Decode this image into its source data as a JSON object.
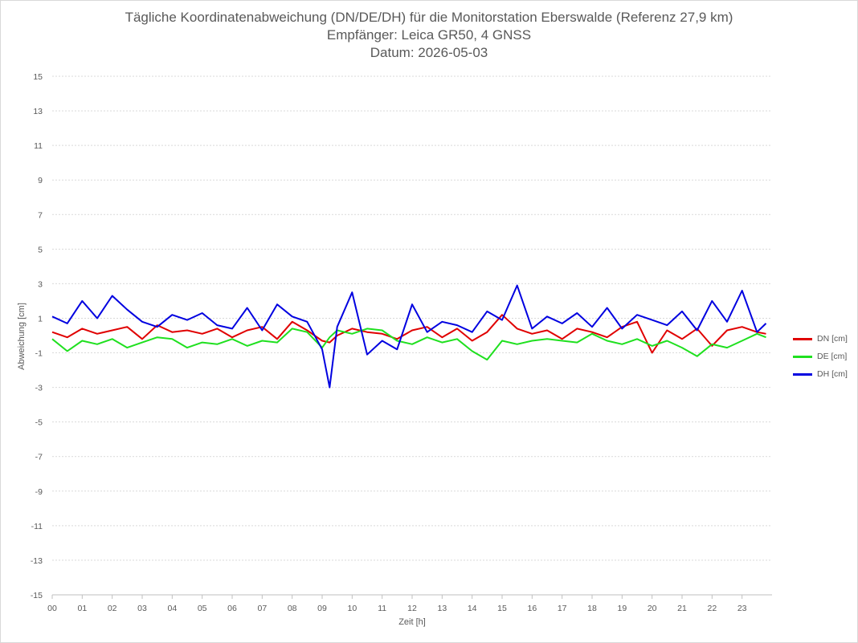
{
  "chart_data": {
    "type": "line",
    "title": "Tägliche Koordinatenabweichung (DN/DE/DH) für die Monitorstation Eberswalde (Referenz 27,9 km)",
    "subtitle": "Empfänger: Leica GR50, 4 GNSS",
    "subtitle2": "Datum: 2026-05-03",
    "xlabel": "Zeit [h]",
    "ylabel": "Abweichung [cm]",
    "xlim": [
      0,
      24
    ],
    "ylim": [
      -15,
      15
    ],
    "x_ticks": [
      "00",
      "01",
      "02",
      "03",
      "04",
      "05",
      "06",
      "07",
      "08",
      "09",
      "10",
      "11",
      "12",
      "13",
      "14",
      "15",
      "16",
      "17",
      "18",
      "19",
      "20",
      "21",
      "22",
      "23"
    ],
    "y_ticks": [
      15,
      13,
      11,
      9,
      7,
      5,
      3,
      1,
      -1,
      -3,
      -5,
      -7,
      -9,
      -11,
      -13,
      -15
    ],
    "grid": "horizontal dotted",
    "legend_position": "right",
    "x": [
      0,
      0.5,
      1,
      1.5,
      2,
      2.5,
      3,
      3.5,
      4,
      4.5,
      5,
      5.5,
      6,
      6.5,
      7,
      7.5,
      8,
      8.5,
      9,
      9.25,
      9.5,
      10,
      10.5,
      11,
      11.5,
      12,
      12.5,
      13,
      13.5,
      14,
      14.5,
      15,
      15.5,
      16,
      16.5,
      17,
      17.5,
      18,
      18.5,
      19,
      19.5,
      20,
      20.5,
      21,
      21.5,
      22,
      22.5,
      23,
      23.5,
      23.8
    ],
    "series": [
      {
        "name": "DN [cm]",
        "color": "#e00000",
        "values": [
          0.2,
          -0.1,
          0.4,
          0.1,
          0.3,
          0.5,
          -0.2,
          0.6,
          0.2,
          0.3,
          0.1,
          0.4,
          -0.1,
          0.3,
          0.5,
          -0.2,
          0.8,
          0.3,
          -0.3,
          -0.4,
          0.0,
          0.4,
          0.2,
          0.1,
          -0.2,
          0.3,
          0.5,
          -0.1,
          0.4,
          -0.3,
          0.2,
          1.2,
          0.4,
          0.1,
          0.3,
          -0.2,
          0.4,
          0.2,
          -0.1,
          0.5,
          0.8,
          -1.0,
          0.3,
          -0.2,
          0.4,
          -0.6,
          0.3,
          0.5,
          0.2,
          0.1
        ]
      },
      {
        "name": "DE [cm]",
        "color": "#1fe01f",
        "values": [
          -0.2,
          -0.9,
          -0.3,
          -0.5,
          -0.2,
          -0.7,
          -0.4,
          -0.1,
          -0.2,
          -0.7,
          -0.4,
          -0.5,
          -0.2,
          -0.6,
          -0.3,
          -0.4,
          0.4,
          0.2,
          -0.7,
          -0.1,
          0.3,
          0.1,
          0.4,
          0.3,
          -0.3,
          -0.5,
          -0.1,
          -0.4,
          -0.2,
          -0.9,
          -1.4,
          -0.3,
          -0.5,
          -0.3,
          -0.2,
          -0.3,
          -0.4,
          0.1,
          -0.3,
          -0.5,
          -0.2,
          -0.6,
          -0.3,
          -0.7,
          -1.2,
          -0.5,
          -0.7,
          -0.3,
          0.1,
          -0.1
        ]
      },
      {
        "name": "DH [cm]",
        "color": "#0000e0",
        "values": [
          1.1,
          0.7,
          2.0,
          1.0,
          2.3,
          1.5,
          0.8,
          0.5,
          1.2,
          0.9,
          1.3,
          0.6,
          0.4,
          1.6,
          0.3,
          1.8,
          1.1,
          0.8,
          -0.8,
          -3.0,
          0.5,
          2.5,
          -1.1,
          -0.3,
          -0.8,
          1.8,
          0.2,
          0.8,
          0.6,
          0.2,
          1.4,
          0.9,
          2.9,
          0.4,
          1.1,
          0.7,
          1.3,
          0.5,
          1.6,
          0.4,
          1.2,
          0.9,
          0.6,
          1.4,
          0.3,
          2.0,
          0.8,
          2.6,
          0.2,
          0.7
        ]
      }
    ]
  }
}
